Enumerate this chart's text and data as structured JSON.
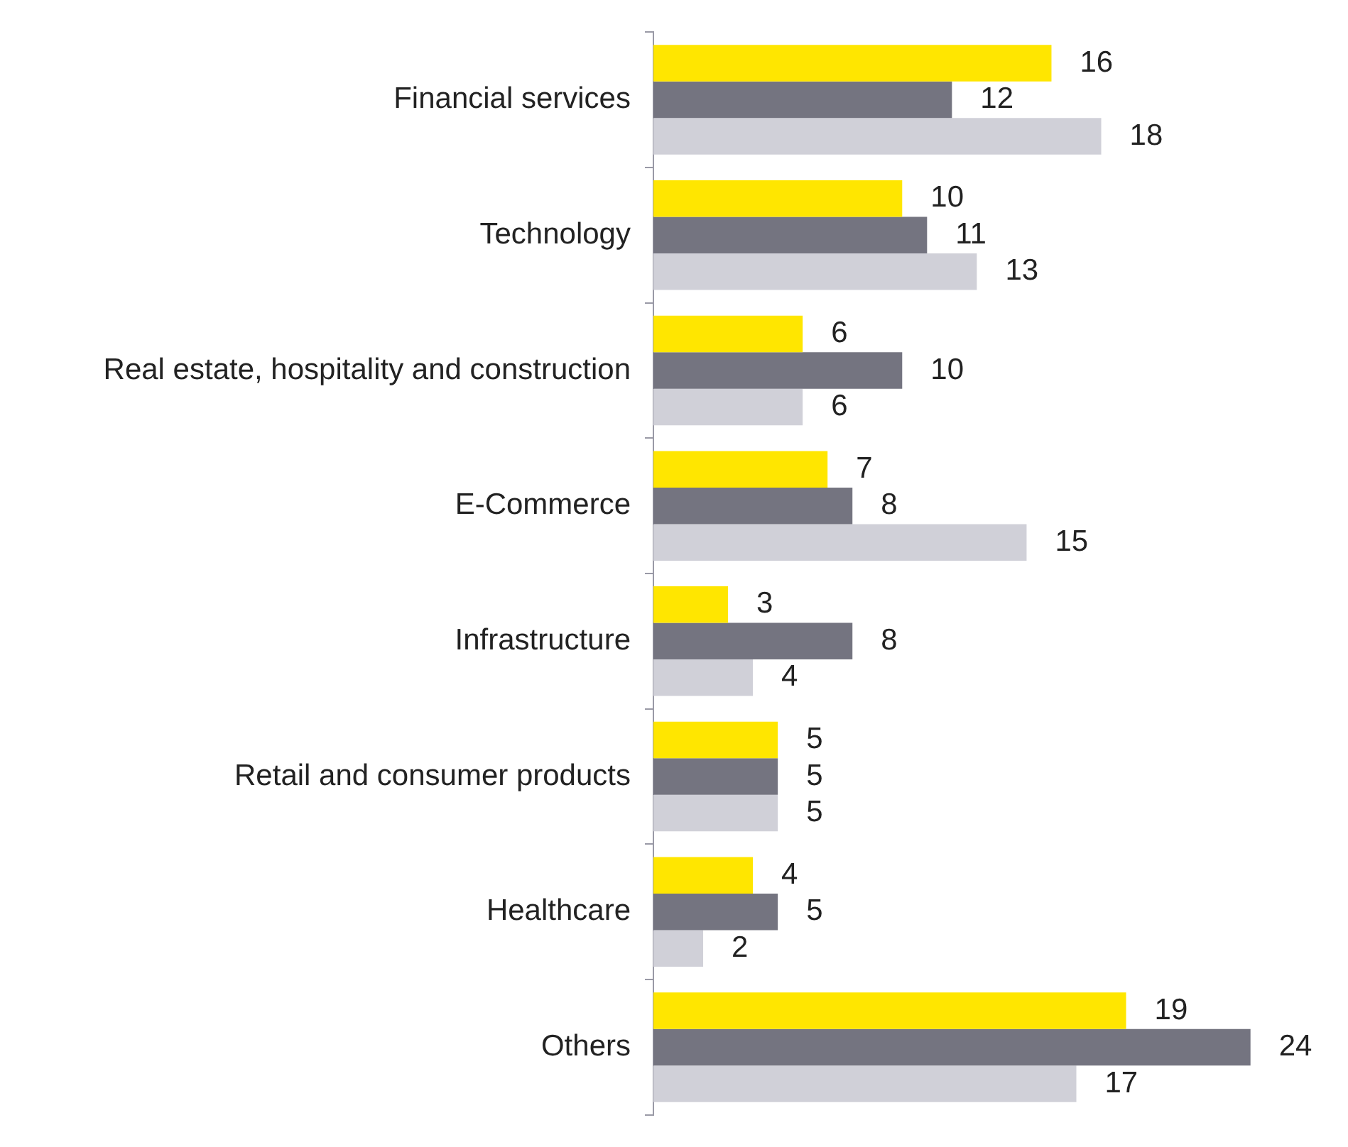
{
  "chart_data": {
    "type": "bar",
    "orientation": "horizontal",
    "data_labels": true,
    "tick_labels": "y",
    "categories": [
      "Financial services",
      "Technology",
      "Real estate, hospitality and construction",
      "E-Commerce",
      "Infrastructure",
      "Retail and consumer products",
      "Healthcare",
      "Others"
    ],
    "series": [
      {
        "color": "#ffe600",
        "values": [
          16,
          10,
          6,
          7,
          3,
          5,
          4,
          19
        ]
      },
      {
        "color": "#747480",
        "values": [
          12,
          11,
          10,
          8,
          8,
          5,
          5,
          24
        ]
      },
      {
        "color": "#d0d0d8",
        "values": [
          18,
          13,
          6,
          15,
          4,
          5,
          2,
          17
        ]
      }
    ]
  }
}
